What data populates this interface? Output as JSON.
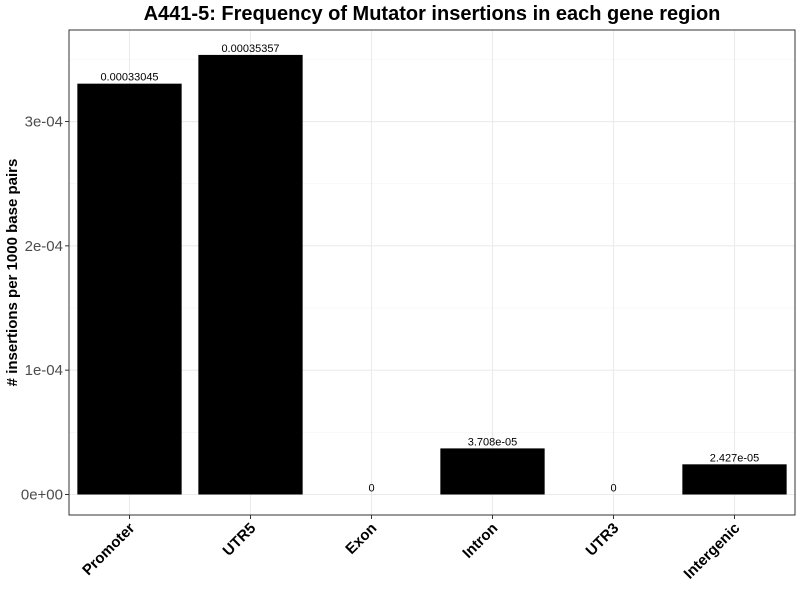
{
  "chart_data": {
    "type": "bar",
    "title": "A441-5: Frequency of Mutator insertions in each gene region",
    "xlabel": "",
    "ylabel": "# insertions per 1000 base pairs",
    "categories": [
      "Promoter",
      "UTR5",
      "Exon",
      "Intron",
      "UTR3",
      "Intergenic"
    ],
    "values": [
      0.00033045,
      0.00035357,
      0,
      3.708e-05,
      0,
      2.427e-05
    ],
    "data_labels": [
      "0.00033045",
      "0.00035357",
      "0",
      "3.708e-05",
      "0",
      "2.427e-05"
    ],
    "yticks": [
      0,
      0.0001,
      0.0002,
      0.0003
    ],
    "ytick_labels": [
      "0e+00",
      "1e-04",
      "2e-04",
      "3e-04"
    ],
    "ylim": [
      0,
      0.000372
    ],
    "grid": true,
    "bar_color": "#000000"
  }
}
